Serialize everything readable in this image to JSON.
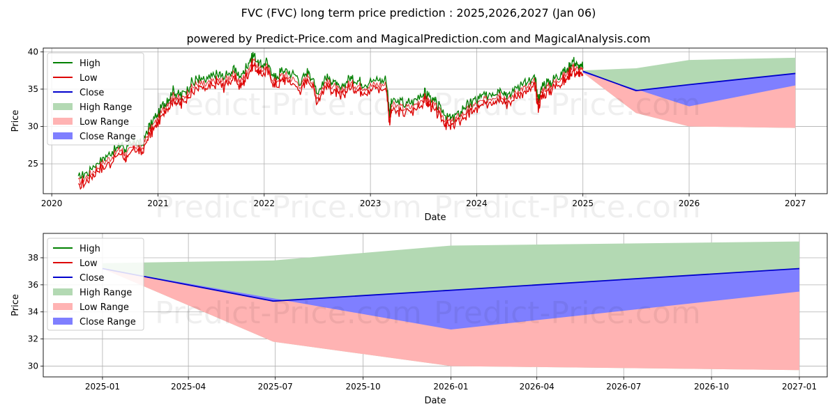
{
  "title": "FVC (FVC) long term price prediction : 2025,2026,2027 (Jan 06)",
  "subtitle": "powered by Predict-Price.com and MagicalPrediction.com and MagicalAnalysis.com",
  "watermark": "Predict-Price.com",
  "colors": {
    "high": "#008000",
    "low": "#dd0000",
    "close": "#0000cc",
    "high_range": "#b3d9b3",
    "low_range": "#ffb3b3",
    "close_range": "#7f7fff"
  },
  "legend": [
    "High",
    "Low",
    "Close",
    "High Range",
    "Low Range",
    "Close Range"
  ],
  "chart_data": [
    {
      "type": "line",
      "title": "",
      "xlabel": "Date",
      "ylabel": "Price",
      "xlim": [
        2019.92,
        2027.3
      ],
      "ylim": [
        21.0,
        40.5
      ],
      "xticks": [
        2020,
        2021,
        2022,
        2023,
        2024,
        2025,
        2026,
        2027
      ],
      "xtick_labels": [
        "2020",
        "2021",
        "2022",
        "2023",
        "2024",
        "2025",
        "2026",
        "2027"
      ],
      "yticks": [
        25,
        30,
        35,
        40
      ],
      "ytick_labels": [
        "25",
        "30",
        "35",
        "40"
      ],
      "grid": true,
      "legend_position": "upper-left",
      "history": {
        "x": [
          2020.25,
          2020.35,
          2020.45,
          2020.55,
          2020.65,
          2020.7,
          2020.78,
          2020.85,
          2020.92,
          2021.0,
          2021.08,
          2021.15,
          2021.22,
          2021.3,
          2021.38,
          2021.45,
          2021.55,
          2021.62,
          2021.7,
          2021.78,
          2021.84,
          2021.9,
          2021.96,
          2022.02,
          2022.1,
          2022.18,
          2022.25,
          2022.35,
          2022.42,
          2022.5,
          2022.58,
          2022.65,
          2022.72,
          2022.8,
          2022.88,
          2022.95,
          2023.05,
          2023.15,
          2023.18,
          2023.2,
          2023.3,
          2023.4,
          2023.5,
          2023.55,
          2023.62,
          2023.7,
          2023.76,
          2023.82,
          2023.9,
          2023.96,
          2024.05,
          2024.15,
          2024.22,
          2024.3,
          2024.4,
          2024.48,
          2024.55,
          2024.58,
          2024.62,
          2024.7,
          2024.78,
          2024.85,
          2024.9,
          2024.95,
          2025.0
        ],
        "close": [
          22.5,
          23.5,
          24.8,
          25.8,
          27.0,
          26.2,
          27.5,
          27.0,
          29.5,
          31.0,
          33.0,
          34.2,
          33.5,
          35.0,
          35.8,
          35.5,
          36.3,
          36.0,
          37.0,
          36.0,
          37.5,
          39.0,
          37.5,
          38.0,
          36.0,
          37.0,
          36.5,
          35.5,
          37.0,
          34.0,
          36.0,
          35.5,
          34.5,
          35.8,
          35.5,
          35.3,
          35.6,
          35.6,
          31.0,
          32.8,
          32.5,
          32.6,
          34.0,
          33.5,
          32.5,
          31.0,
          30.5,
          31.2,
          32.0,
          32.7,
          33.3,
          34.0,
          34.5,
          33.5,
          35.0,
          35.2,
          36.0,
          33.0,
          35.0,
          35.5,
          36.5,
          37.0,
          38.2,
          37.6,
          37.4
        ]
      },
      "forecast": {
        "x": [
          2025.0,
          2025.5,
          2026.0,
          2027.0
        ],
        "high": [
          37.5,
          37.8,
          38.9,
          39.2
        ],
        "low": [
          37.2,
          31.8,
          30.0,
          29.8
        ],
        "close_low": [
          37.2,
          35.0,
          32.7,
          35.5
        ],
        "close": [
          37.4,
          34.8,
          35.6,
          37.1
        ]
      }
    },
    {
      "type": "line",
      "title": "",
      "xlabel": "Date",
      "ylabel": "Price",
      "xlim": [
        -0.17,
        2.08
      ],
      "ylim": [
        29.2,
        39.8
      ],
      "xticks": [
        0,
        0.2466,
        0.4959,
        0.7479,
        1.0,
        1.2466,
        1.4959,
        1.7479,
        2.0
      ],
      "xtick_labels": [
        "2025-01",
        "2025-04",
        "2025-07",
        "2025-10",
        "2026-01",
        "2026-04",
        "2026-07",
        "2026-10",
        "2027-01"
      ],
      "yticks": [
        30,
        32,
        34,
        36,
        38
      ],
      "ytick_labels": [
        "30",
        "32",
        "34",
        "36",
        "38"
      ],
      "grid": true,
      "legend_position": "upper-left",
      "forecast": {
        "x": [
          0.0,
          0.49,
          1.0,
          2.0
        ],
        "high": [
          37.6,
          37.8,
          38.9,
          39.2
        ],
        "low": [
          37.2,
          31.8,
          30.0,
          29.7
        ],
        "close_low": [
          37.2,
          35.0,
          32.7,
          35.5
        ],
        "close": [
          37.2,
          34.8,
          35.6,
          37.2
        ]
      }
    }
  ]
}
